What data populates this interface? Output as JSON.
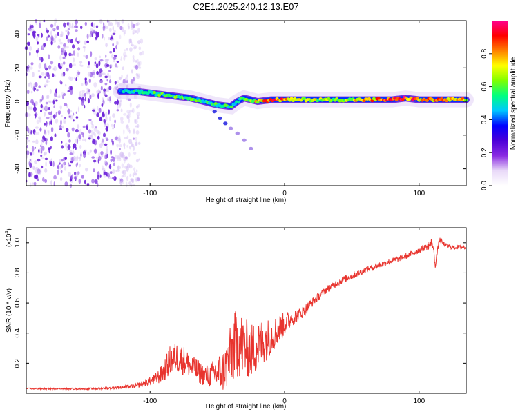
{
  "chart_data": [
    {
      "type": "heatmap",
      "title": "C2E1.2025.240.12.13.E07",
      "xlabel": "Height of straight line (km)",
      "ylabel": "Frequency (Hz)",
      "xlim": [
        -192,
        135
      ],
      "ylim": [
        -50,
        48
      ],
      "xticks": [
        -100,
        0,
        100
      ],
      "xtick_labels": [
        "-100",
        "0",
        "100"
      ],
      "yticks": [
        -40,
        -20,
        0,
        20,
        40
      ],
      "ytick_labels": [
        "-40",
        "-20",
        "0",
        "20",
        "40"
      ],
      "colorbar": {
        "label": "Normalized spectral amplitude",
        "range": [
          0,
          1
        ],
        "ticks": [
          0.0,
          0.2,
          0.4,
          0.6,
          0.8
        ],
        "tick_labels": [
          "0.0",
          "0.2",
          "0.4",
          "0.6",
          "0.8"
        ],
        "colormap": [
          "#ffffff",
          "#e8d8f8",
          "#8a2be2",
          "#4b00d8",
          "#0000ff",
          "#00c8ff",
          "#00ff80",
          "#80ff00",
          "#ffff00",
          "#ff8000",
          "#ff0000",
          "#ff0090"
        ]
      },
      "noise_region": {
        "x_from": -192,
        "x_to": -107,
        "amplitude": 0.15
      },
      "ridge": {
        "x": [
          -122,
          -110,
          -100,
          -90,
          -80,
          -70,
          -60,
          -50,
          -40,
          -35,
          -30,
          -20,
          -10,
          0,
          10,
          20,
          40,
          60,
          80,
          90,
          100,
          110,
          120,
          135
        ],
        "y": [
          6,
          6,
          5,
          4,
          3,
          2,
          0,
          -2,
          -3,
          0,
          2,
          0,
          1,
          1,
          1,
          1,
          1,
          1,
          1,
          2,
          1,
          1,
          1,
          1
        ],
        "amplitude": [
          0.5,
          0.55,
          0.6,
          0.6,
          0.62,
          0.6,
          0.55,
          0.6,
          0.55,
          0.6,
          0.6,
          0.8,
          0.9,
          0.85,
          0.75,
          0.7,
          0.7,
          0.8,
          0.9,
          0.95,
          0.85,
          0.9,
          0.85,
          0.8
        ]
      },
      "branch": {
        "x": [
          -52,
          -48,
          -44,
          -40,
          -35,
          -30,
          -25
        ],
        "y": [
          -6,
          -10,
          -13,
          -16,
          -19,
          -23,
          -28
        ],
        "amplitude": [
          0.3,
          0.3,
          0.25,
          0.2,
          0.12,
          0.08,
          0.06
        ]
      }
    },
    {
      "type": "line",
      "title": "",
      "xlabel": "Height of straight line (km)",
      "ylabel": "SNR (10 * v/v)",
      "y_scale_note": "(x10",
      "y_scale_exp": "4",
      "color": "#e8342e",
      "xlim": [
        -192,
        135
      ],
      "ylim": [
        0,
        1.1
      ],
      "xticks": [
        -100,
        0,
        100
      ],
      "xtick_labels": [
        "-100",
        "0",
        "100"
      ],
      "yticks": [
        0.2,
        0.4,
        0.6,
        0.8,
        1.0
      ],
      "ytick_labels": [
        "0.2",
        "0.4",
        "0.6",
        "0.8",
        "1.0"
      ],
      "series": [
        {
          "name": "SNR",
          "x": [
            -192,
            -180,
            -160,
            -140,
            -120,
            -110,
            -100,
            -95,
            -90,
            -85,
            -80,
            -75,
            -70,
            -65,
            -60,
            -55,
            -50,
            -45,
            -40,
            -35,
            -30,
            -25,
            -20,
            -15,
            -10,
            -5,
            0,
            5,
            10,
            15,
            20,
            30,
            40,
            50,
            60,
            70,
            80,
            90,
            100,
            105,
            110,
            112,
            115,
            120,
            125,
            135
          ],
          "y": [
            0.03,
            0.03,
            0.03,
            0.03,
            0.04,
            0.05,
            0.08,
            0.1,
            0.14,
            0.22,
            0.24,
            0.22,
            0.18,
            0.15,
            0.12,
            0.12,
            0.14,
            0.15,
            0.25,
            0.35,
            0.3,
            0.28,
            0.32,
            0.35,
            0.38,
            0.42,
            0.46,
            0.5,
            0.52,
            0.55,
            0.6,
            0.68,
            0.74,
            0.78,
            0.82,
            0.85,
            0.88,
            0.91,
            0.95,
            0.97,
            1.0,
            0.85,
            1.02,
            0.98,
            0.97,
            0.97
          ],
          "noise": [
            0.005,
            0.005,
            0.005,
            0.006,
            0.01,
            0.015,
            0.03,
            0.04,
            0.07,
            0.1,
            0.1,
            0.1,
            0.08,
            0.08,
            0.07,
            0.08,
            0.12,
            0.15,
            0.2,
            0.25,
            0.2,
            0.18,
            0.18,
            0.15,
            0.12,
            0.1,
            0.08,
            0.06,
            0.04,
            0.04,
            0.03,
            0.025,
            0.025,
            0.025,
            0.02,
            0.02,
            0.02,
            0.02,
            0.02,
            0.02,
            0.04,
            0.02,
            0.02,
            0.015,
            0.015,
            0.015
          ]
        }
      ]
    }
  ]
}
